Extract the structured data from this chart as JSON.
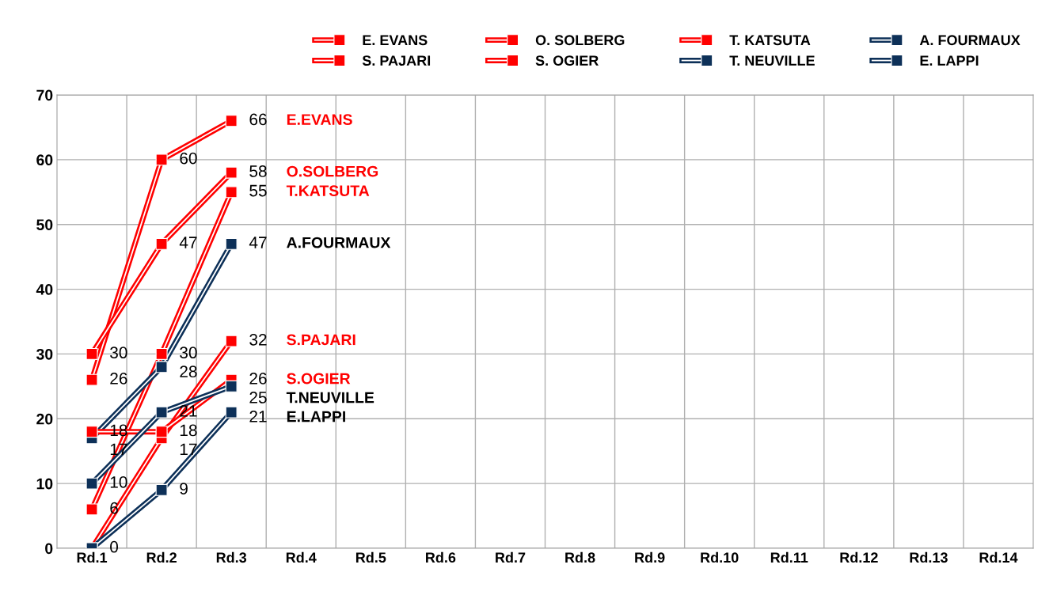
{
  "chart_data": {
    "type": "line",
    "categories": [
      "Rd.1",
      "Rd.2",
      "Rd.3",
      "Rd.4",
      "Rd.5",
      "Rd.6",
      "Rd.7",
      "Rd.8",
      "Rd.9",
      "Rd.10",
      "Rd.11",
      "Rd.12",
      "Rd.13",
      "Rd.14"
    ],
    "series": [
      {
        "name": "E. EVANS",
        "color": "#ff0000",
        "values": [
          26,
          60,
          66,
          null,
          null,
          null,
          null,
          null,
          null,
          null,
          null,
          null,
          null,
          null
        ],
        "value_labels": [
          "26",
          "60",
          "66",
          null,
          null,
          null,
          null,
          null,
          null,
          null,
          null,
          null,
          null,
          null
        ]
      },
      {
        "name": "O. SOLBERG",
        "color": "#ff0000",
        "values": [
          30,
          47,
          58,
          null,
          null,
          null,
          null,
          null,
          null,
          null,
          null,
          null,
          null,
          null
        ],
        "value_labels": [
          "30",
          "47",
          "58",
          null,
          null,
          null,
          null,
          null,
          null,
          null,
          null,
          null,
          null,
          null
        ]
      },
      {
        "name": "T. KATSUTA",
        "color": "#ff0000",
        "values": [
          6,
          30,
          55,
          null,
          null,
          null,
          null,
          null,
          null,
          null,
          null,
          null,
          null,
          null
        ],
        "value_labels": [
          "6",
          "30",
          "55",
          null,
          null,
          null,
          null,
          null,
          null,
          null,
          null,
          null,
          null,
          null
        ]
      },
      {
        "name": "A. FOURMAUX",
        "color": "#0d3058",
        "values": [
          17,
          28,
          47,
          null,
          null,
          null,
          null,
          null,
          null,
          null,
          null,
          null,
          null,
          null
        ],
        "value_labels": [
          "17",
          "28",
          "47",
          null,
          null,
          null,
          null,
          null,
          null,
          null,
          null,
          null,
          null,
          null
        ]
      },
      {
        "name": "S. PAJARI",
        "color": "#ff0000",
        "values": [
          0,
          17,
          32,
          null,
          null,
          null,
          null,
          null,
          null,
          null,
          null,
          null,
          null,
          null
        ],
        "value_labels": [
          null,
          "17",
          "32",
          null,
          null,
          null,
          null,
          null,
          null,
          null,
          null,
          null,
          null,
          null
        ]
      },
      {
        "name": "S. OGIER",
        "color": "#ff0000",
        "values": [
          18,
          18,
          26,
          null,
          null,
          null,
          null,
          null,
          null,
          null,
          null,
          null,
          null,
          null
        ],
        "value_labels": [
          "18",
          "18",
          "26",
          null,
          null,
          null,
          null,
          null,
          null,
          null,
          null,
          null,
          null,
          null
        ]
      },
      {
        "name": "T. NEUVILLE",
        "color": "#0d3058",
        "values": [
          10,
          21,
          25,
          null,
          null,
          null,
          null,
          null,
          null,
          null,
          null,
          null,
          null,
          null
        ],
        "value_labels": [
          "10",
          "21",
          "25",
          null,
          null,
          null,
          null,
          null,
          null,
          null,
          null,
          null,
          null,
          null
        ]
      },
      {
        "name": "E. LAPPI",
        "color": "#0d3058",
        "values": [
          0,
          9,
          21,
          null,
          null,
          null,
          null,
          null,
          null,
          null,
          null,
          null,
          null,
          null
        ],
        "value_labels": [
          "0",
          "9",
          "21",
          null,
          null,
          null,
          null,
          null,
          null,
          null,
          null,
          null,
          null,
          null
        ]
      }
    ],
    "annotations": [
      "E.EVANS",
      "O.SOLBERG",
      "T.KATSUTA",
      "A.FOURMAUX",
      "S.PAJARI",
      "S.OGIER",
      "T.NEUVILLE",
      "E.LAPPI"
    ],
    "ylim": [
      0,
      70
    ],
    "yticks": [
      0,
      10,
      20,
      30,
      40,
      50,
      60,
      70
    ],
    "grid": true,
    "legend": "top",
    "marker": "square",
    "line_style": "solid"
  }
}
